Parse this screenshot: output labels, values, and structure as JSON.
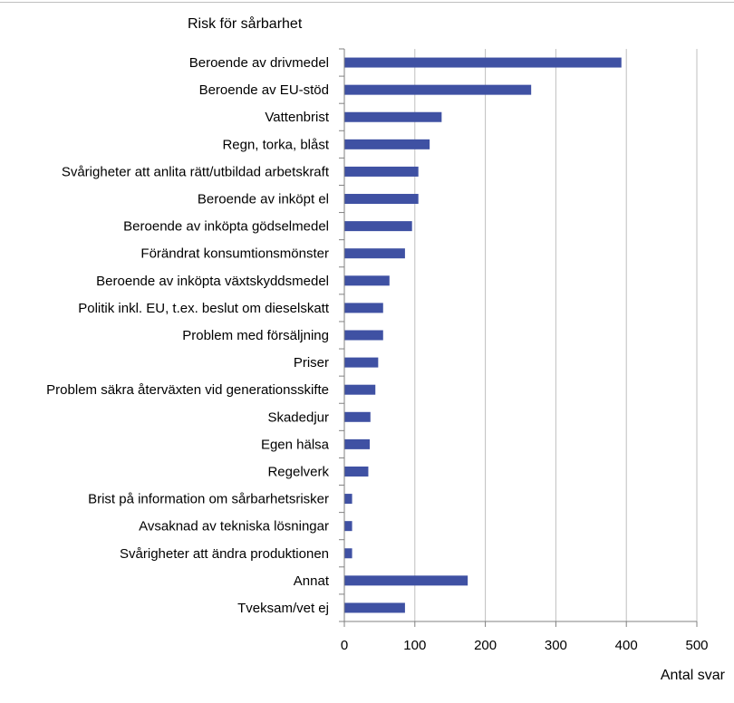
{
  "chart_data": {
    "type": "bar",
    "orientation": "horizontal",
    "title": "Risk för sårbarhet",
    "xlabel": "Antal svar",
    "ylabel": "",
    "xlim": [
      0,
      500
    ],
    "xticks": [
      0,
      100,
      200,
      300,
      400,
      500
    ],
    "grid": "vertical",
    "legend": "none",
    "bar_color": "#3f51a3",
    "gridline_color": "#bfbfbf",
    "categories": [
      "Beroende av drivmedel",
      "Beroende av EU-stöd",
      "Vattenbrist",
      "Regn, torka, blåst",
      "Svårigheter att anlita rätt/utbildad arbetskraft",
      "Beroende av inköpt el",
      "Beroende av inköpta gödselmedel",
      "Förändrat konsumtionsmönster",
      "Beroende av inköpta växtskyddsmedel",
      "Politik inkl. EU, t.ex. beslut om dieselskatt",
      "Problem med försäljning",
      "Priser",
      "Problem säkra återväxten vid generationsskifte",
      "Skadedjur",
      "Egen hälsa",
      "Regelverk",
      "Brist på information om sårbarhetsrisker",
      "Avsaknad av tekniska lösningar",
      "Svårigheter att ändra produktionen",
      "Annat",
      "Tveksam/vet ej"
    ],
    "values": [
      393,
      265,
      138,
      121,
      105,
      105,
      96,
      86,
      64,
      55,
      55,
      48,
      44,
      37,
      36,
      34,
      11,
      11,
      11,
      175,
      86
    ]
  }
}
